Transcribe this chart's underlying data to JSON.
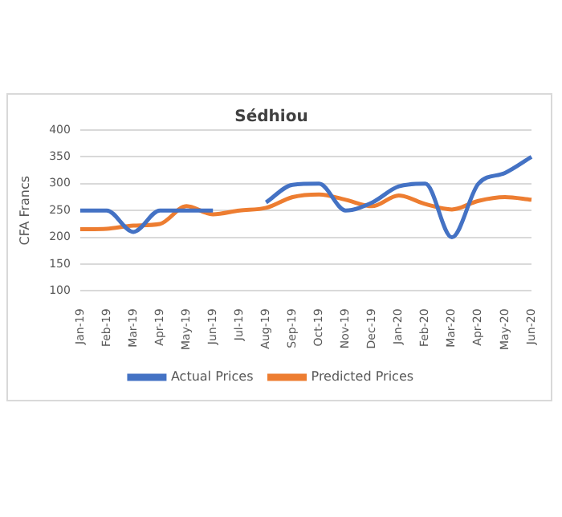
{
  "chart_data": {
    "type": "line",
    "title": "Sédhiou",
    "ylabel": "CFA Francs",
    "categories": [
      "Jan-19",
      "Feb-19",
      "Mar-19",
      "Apr-19",
      "May-19",
      "Jun-19",
      "Jul-19",
      "Aug-19",
      "Sep-19",
      "Oct-19",
      "Nov-19",
      "Dec-19",
      "Jan-20",
      "Feb-20",
      "Mar-20",
      "Apr-20",
      "May-20",
      "Jun-20"
    ],
    "series": [
      {
        "name": "Actual Prices",
        "color": "#4472c4",
        "values": [
          250,
          250,
          210,
          250,
          250,
          250,
          null,
          265,
          298,
          300,
          250,
          265,
          295,
          300,
          200,
          300,
          320,
          350
        ]
      },
      {
        "name": "Predicted Prices",
        "color": "#ed7d31",
        "values": [
          215,
          216,
          222,
          225,
          258,
          243,
          250,
          255,
          275,
          280,
          270,
          258,
          278,
          262,
          252,
          268,
          275,
          270
        ]
      }
    ],
    "ylim": [
      100,
      400
    ],
    "yticks": [
      100,
      150,
      200,
      250,
      300,
      350,
      400
    ],
    "grid": "y",
    "legend": "bottom",
    "marker": "none"
  }
}
